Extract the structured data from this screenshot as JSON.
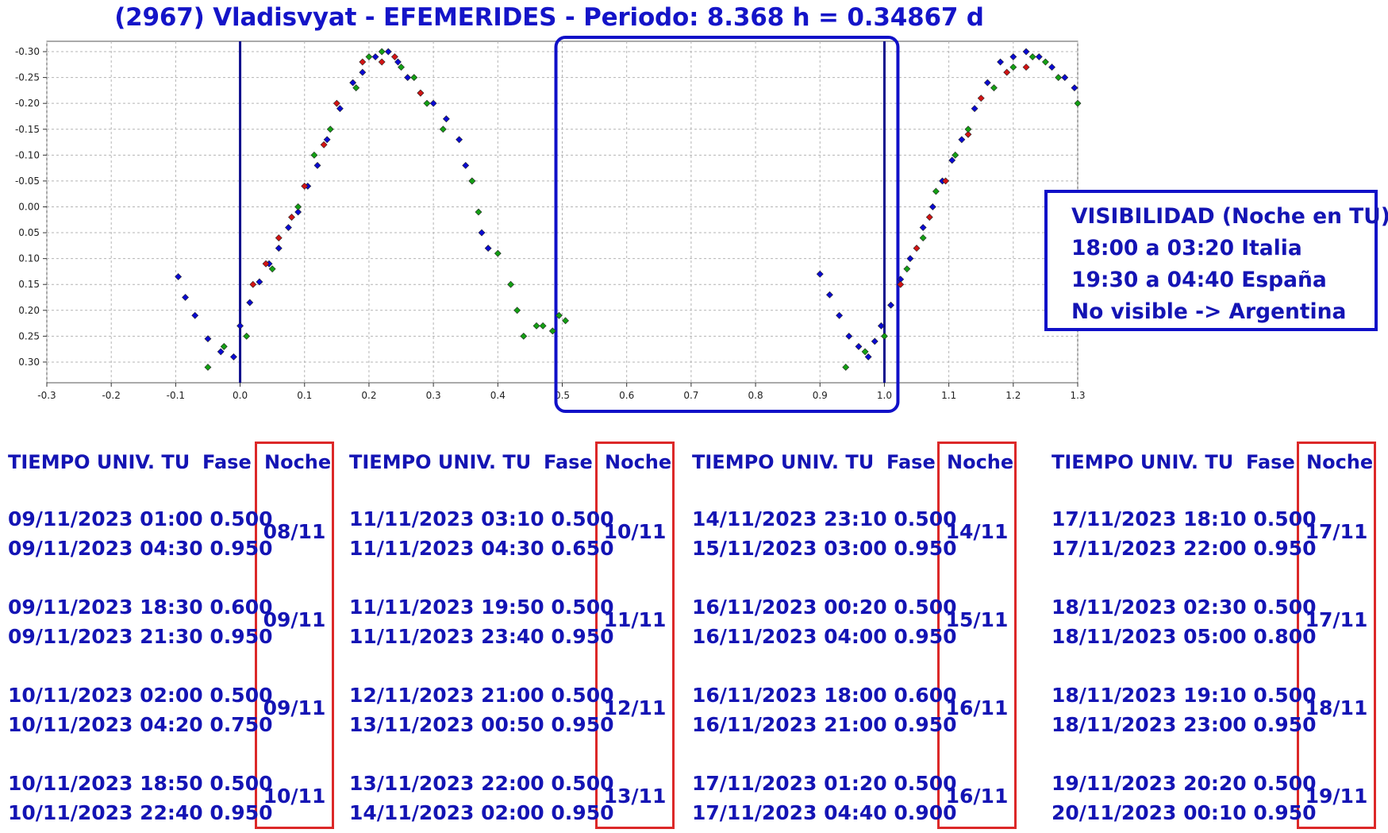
{
  "title": "(2967) Vladisvyat - EFEMERIDES - Periodo: 8.368 h = 0.34867 d",
  "chart_data": {
    "type": "scatter",
    "title": "(2967) Vladisvyat - EFEMERIDES - Periodo: 8.368 h = 0.34867 d",
    "xlim": [
      -0.3,
      1.3
    ],
    "ylim": [
      0.34,
      -0.32
    ],
    "y_inverted": true,
    "x_ticks": [
      "-0.3",
      "-0.2",
      "-0.1",
      "0.0",
      "0.1",
      "0.2",
      "0.3",
      "0.4",
      "0.5",
      "0.6",
      "0.7",
      "0.8",
      "0.9",
      "1.0",
      "1.1",
      "1.2",
      "1.3"
    ],
    "y_ticks": [
      "-0.30",
      "-0.25",
      "-0.20",
      "-0.15",
      "-0.10",
      "-0.05",
      "0.00",
      "0.05",
      "0.10",
      "0.15",
      "0.20",
      "0.25",
      "0.30"
    ],
    "grid": true,
    "vertical_lines": [
      0.0,
      1.0
    ],
    "highlight_range": [
      0.5,
      1.0
    ],
    "series": [
      {
        "color": "#0a0ad2",
        "points": [
          [
            -0.096,
            0.135
          ],
          [
            -0.085,
            0.175
          ],
          [
            -0.07,
            0.21
          ],
          [
            -0.05,
            0.255
          ],
          [
            -0.03,
            0.28
          ],
          [
            -0.01,
            0.29
          ],
          [
            0.0,
            0.23
          ],
          [
            0.015,
            0.185
          ],
          [
            0.03,
            0.145
          ],
          [
            0.045,
            0.11
          ],
          [
            0.06,
            0.08
          ],
          [
            0.075,
            0.04
          ],
          [
            0.09,
            0.01
          ],
          [
            0.105,
            -0.04
          ],
          [
            0.12,
            -0.08
          ],
          [
            0.135,
            -0.13
          ],
          [
            0.155,
            -0.19
          ],
          [
            0.175,
            -0.24
          ],
          [
            0.19,
            -0.26
          ],
          [
            0.21,
            -0.29
          ],
          [
            0.23,
            -0.3
          ],
          [
            0.245,
            -0.28
          ],
          [
            0.26,
            -0.25
          ],
          [
            0.28,
            -0.22
          ],
          [
            0.3,
            -0.2
          ],
          [
            0.32,
            -0.17
          ],
          [
            0.34,
            -0.13
          ],
          [
            0.35,
            -0.08
          ],
          [
            0.36,
            -0.05
          ],
          [
            0.375,
            0.05
          ],
          [
            0.385,
            0.08
          ],
          [
            0.9,
            0.13
          ],
          [
            0.915,
            0.17
          ],
          [
            0.93,
            0.21
          ],
          [
            0.945,
            0.25
          ],
          [
            0.96,
            0.27
          ],
          [
            0.975,
            0.29
          ],
          [
            0.985,
            0.26
          ],
          [
            0.995,
            0.23
          ],
          [
            1.01,
            0.19
          ],
          [
            1.025,
            0.14
          ],
          [
            1.04,
            0.1
          ],
          [
            1.06,
            0.04
          ],
          [
            1.075,
            0.0
          ],
          [
            1.09,
            -0.05
          ],
          [
            1.105,
            -0.09
          ],
          [
            1.12,
            -0.13
          ],
          [
            1.14,
            -0.19
          ],
          [
            1.16,
            -0.24
          ],
          [
            1.18,
            -0.28
          ],
          [
            1.2,
            -0.29
          ],
          [
            1.22,
            -0.3
          ],
          [
            1.24,
            -0.29
          ],
          [
            1.26,
            -0.27
          ],
          [
            1.28,
            -0.25
          ],
          [
            1.295,
            -0.23
          ]
        ]
      },
      {
        "color": "#d21414",
        "points": [
          [
            0.02,
            0.15
          ],
          [
            0.04,
            0.11
          ],
          [
            0.06,
            0.06
          ],
          [
            0.08,
            0.02
          ],
          [
            0.1,
            -0.04
          ],
          [
            0.13,
            -0.12
          ],
          [
            0.15,
            -0.2
          ],
          [
            0.19,
            -0.28
          ],
          [
            0.22,
            -0.28
          ],
          [
            0.24,
            -0.29
          ],
          [
            0.28,
            -0.22
          ],
          [
            1.025,
            0.15
          ],
          [
            1.05,
            0.08
          ],
          [
            1.07,
            0.02
          ],
          [
            1.095,
            -0.05
          ],
          [
            1.13,
            -0.14
          ],
          [
            1.15,
            -0.21
          ],
          [
            1.19,
            -0.26
          ],
          [
            1.22,
            -0.27
          ]
        ]
      },
      {
        "color": "#14a014",
        "points": [
          [
            -0.05,
            0.31
          ],
          [
            -0.025,
            0.27
          ],
          [
            0.01,
            0.25
          ],
          [
            0.05,
            0.12
          ],
          [
            0.09,
            0.0
          ],
          [
            0.115,
            -0.1
          ],
          [
            0.14,
            -0.15
          ],
          [
            0.18,
            -0.23
          ],
          [
            0.2,
            -0.29
          ],
          [
            0.22,
            -0.3
          ],
          [
            0.25,
            -0.27
          ],
          [
            0.27,
            -0.25
          ],
          [
            0.29,
            -0.2
          ],
          [
            0.315,
            -0.15
          ],
          [
            0.36,
            -0.05
          ],
          [
            0.37,
            0.01
          ],
          [
            0.4,
            0.09
          ],
          [
            0.42,
            0.15
          ],
          [
            0.43,
            0.2
          ],
          [
            0.44,
            0.25
          ],
          [
            0.46,
            0.23
          ],
          [
            0.47,
            0.23
          ],
          [
            0.485,
            0.24
          ],
          [
            0.495,
            0.21
          ],
          [
            0.505,
            0.22
          ],
          [
            0.94,
            0.31
          ],
          [
            0.97,
            0.28
          ],
          [
            1.0,
            0.25
          ],
          [
            1.035,
            0.12
          ],
          [
            1.06,
            0.06
          ],
          [
            1.08,
            -0.03
          ],
          [
            1.11,
            -0.1
          ],
          [
            1.13,
            -0.15
          ],
          [
            1.17,
            -0.23
          ],
          [
            1.2,
            -0.27
          ],
          [
            1.23,
            -0.29
          ],
          [
            1.25,
            -0.28
          ],
          [
            1.27,
            -0.25
          ],
          [
            1.3,
            -0.2
          ]
        ]
      }
    ]
  },
  "visibility": {
    "lines": [
      "VISIBILIDAD (Noche en TU)",
      "18:00 a 03:20 Italia",
      "19:30 a 04:40 España",
      "No visible -> Argentina"
    ]
  },
  "headers": {
    "time": "TIEMPO UNIV. TU",
    "phase": "Fase",
    "night": "Noche"
  },
  "columns": [
    {
      "groups": [
        {
          "l1": "09/11/2023  01:00 0.500",
          "l2": "09/11/2023  04:30 0.950",
          "night": "08/11"
        },
        {
          "l1": "09/11/2023  18:30 0.600",
          "l2": "09/11/2023  21:30 0.950",
          "night": "09/11"
        },
        {
          "l1": "10/11/2023  02:00 0.500",
          "l2": "10/11/2023  04:20 0.750",
          "night": "09/11"
        },
        {
          "l1": "10/11/2023  18:50 0.500",
          "l2": "10/11/2023  22:40 0.950",
          "night": "10/11"
        }
      ]
    },
    {
      "groups": [
        {
          "l1": "11/11/2023  03:10 0.500",
          "l2": "11/11/2023  04:30 0.650",
          "night": "10/11"
        },
        {
          "l1": "11/11/2023  19:50 0.500",
          "l2": "11/11/2023  23:40 0.950",
          "night": "11/11"
        },
        {
          "l1": "12/11/2023  21:00 0.500",
          "l2": "13/11/2023  00:50 0.950",
          "night": "12/11"
        },
        {
          "l1": "13/11/2023  22:00 0.500",
          "l2": "14/11/2023  02:00 0.950",
          "night": "13/11"
        }
      ]
    },
    {
      "groups": [
        {
          "l1": "14/11/2023  23:10 0.500",
          "l2": "15/11/2023  03:00 0.950",
          "night": "14/11"
        },
        {
          "l1": "16/11/2023  00:20 0.500",
          "l2": "16/11/2023  04:00 0.950",
          "night": "15/11"
        },
        {
          "l1": "16/11/2023  18:00 0.600",
          "l2": "16/11/2023  21:00 0.950",
          "night": "16/11"
        },
        {
          "l1": "17/11/2023  01:20 0.500",
          "l2": "17/11/2023  04:40 0.900",
          "night": "16/11"
        }
      ]
    },
    {
      "groups": [
        {
          "l1": "17/11/2023  18:10 0.500",
          "l2": "17/11/2023  22:00 0.950",
          "night": "17/11"
        },
        {
          "l1": "18/11/2023  02:30 0.500",
          "l2": "18/11/2023  05:00 0.800",
          "night": "17/11"
        },
        {
          "l1": "18/11/2023  19:10 0.500",
          "l2": "18/11/2023  23:00 0.950",
          "night": "18/11"
        },
        {
          "l1": "19/11/2023  20:20 0.500",
          "l2": "20/11/2023  00:10 0.950",
          "night": "19/11"
        }
      ]
    }
  ]
}
